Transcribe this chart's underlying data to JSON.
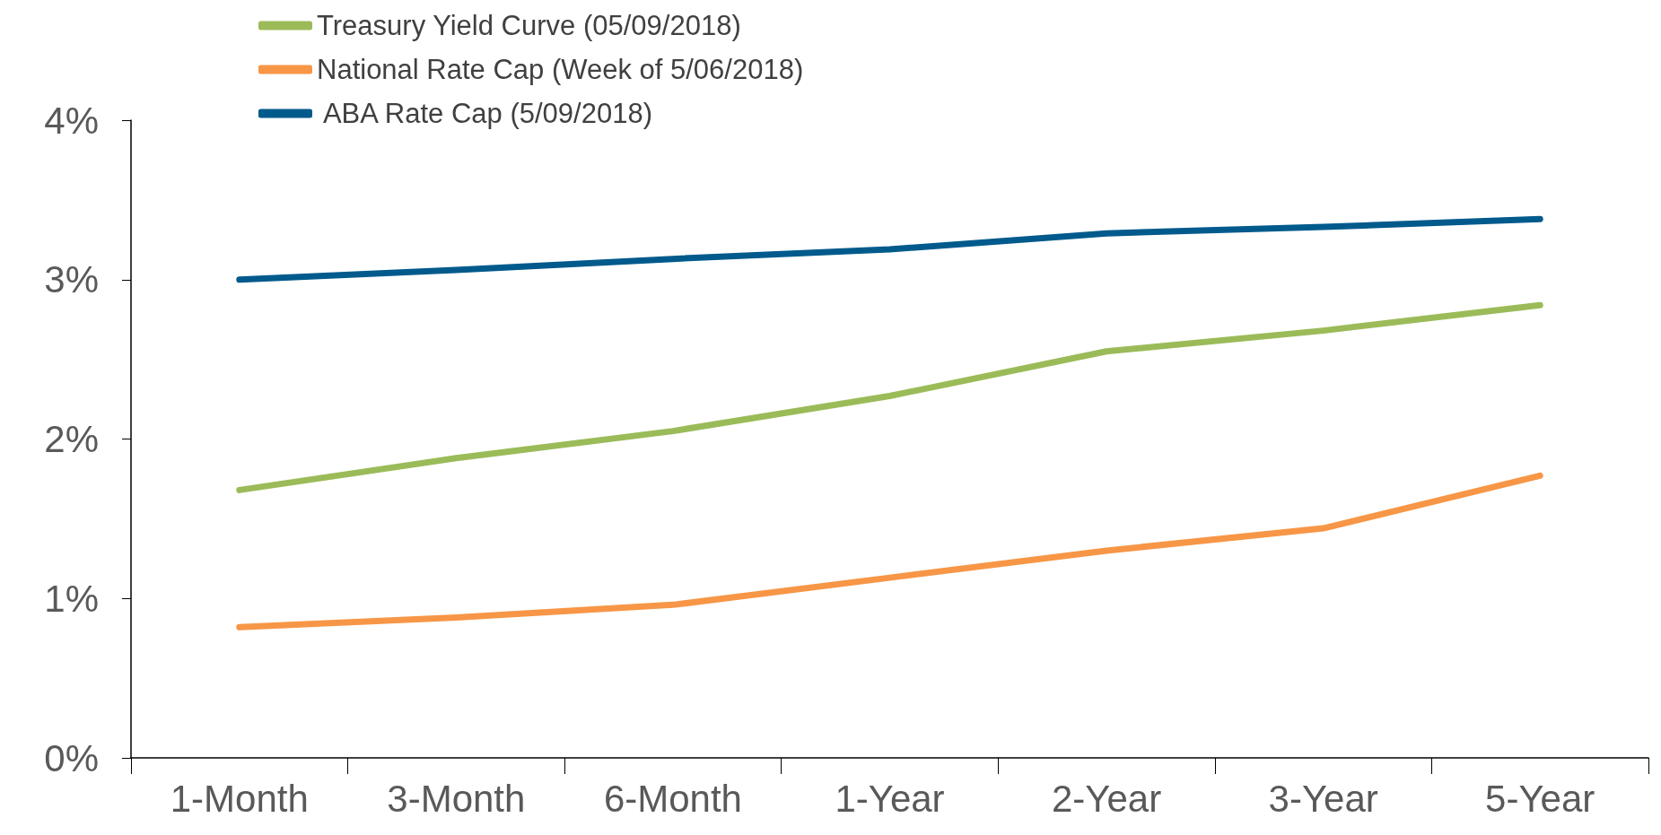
{
  "chart_data": {
    "type": "line",
    "categories": [
      "1-Month",
      "3-Month",
      "6-Month",
      "1-Year",
      "2-Year",
      "3-Year",
      "5-Year"
    ],
    "series": [
      {
        "name": "Treasury Yield Curve (05/09/2018)",
        "color": "#9bbb59",
        "values": [
          1.68,
          1.88,
          2.05,
          2.27,
          2.55,
          2.68,
          2.84
        ]
      },
      {
        "name": "National Rate Cap (Week of 5/06/2018)",
        "color": "#f79646",
        "values": [
          0.82,
          0.88,
          0.96,
          1.13,
          1.3,
          1.44,
          1.77
        ]
      },
      {
        "name": " ABA Rate Cap (5/09/2018)",
        "color": "#005a8c",
        "values": [
          3.0,
          3.06,
          3.13,
          3.19,
          3.29,
          3.33,
          3.38
        ]
      }
    ],
    "ylim": [
      0,
      4
    ],
    "yticks": [
      {
        "value": 0,
        "label": "0%"
      },
      {
        "value": 1,
        "label": "1%"
      },
      {
        "value": 2,
        "label": "2%"
      },
      {
        "value": 3,
        "label": "3%"
      },
      {
        "value": 4,
        "label": "4%"
      }
    ],
    "grid": false,
    "legend": "top left",
    "marker": "none",
    "line_style": "solid"
  }
}
